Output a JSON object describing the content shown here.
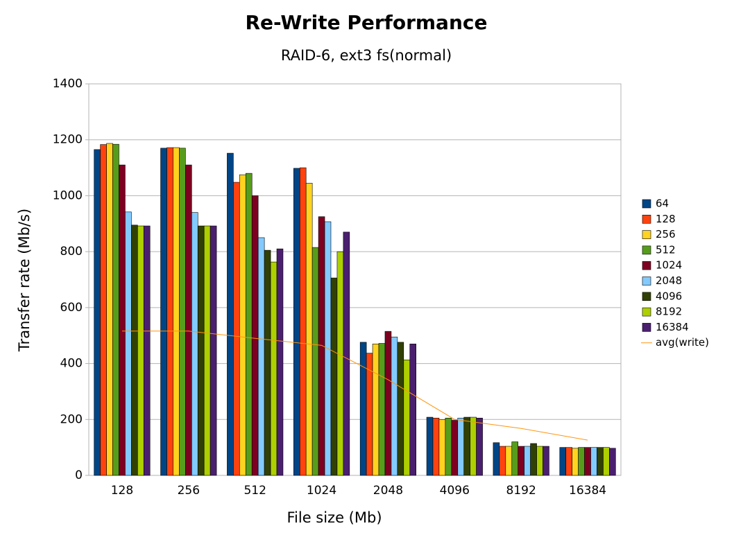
{
  "chart_data": {
    "type": "bar",
    "title": "Re-Write Performance",
    "subtitle": "RAID-6, ext3 fs(normal)",
    "x_label": "File size (Mb)",
    "y_label": "Transfer rate (Mb/s)",
    "categories": [
      "128",
      "256",
      "512",
      "1024",
      "2048",
      "4096",
      "8192",
      "16384"
    ],
    "ylim": [
      0,
      1400
    ],
    "yticks": [
      0,
      200,
      400,
      600,
      800,
      1000,
      1200,
      1400
    ],
    "grid": true,
    "legend": "right",
    "series": [
      {
        "name": "64",
        "color": "#004586",
        "values": [
          1165,
          1170,
          1152,
          1098,
          476,
          208,
          117,
          100
        ]
      },
      {
        "name": "128",
        "color": "#ff420e",
        "values": [
          1183,
          1172,
          1048,
          1100,
          437,
          205,
          104,
          100
        ]
      },
      {
        "name": "256",
        "color": "#ffd320",
        "values": [
          1187,
          1172,
          1075,
          1045,
          470,
          200,
          104,
          97
        ]
      },
      {
        "name": "512",
        "color": "#579d1c",
        "values": [
          1184,
          1170,
          1080,
          815,
          472,
          205,
          120,
          100
        ]
      },
      {
        "name": "1024",
        "color": "#7e0021",
        "values": [
          1110,
          1110,
          1000,
          925,
          515,
          197,
          104,
          100
        ]
      },
      {
        "name": "2048",
        "color": "#83caff",
        "values": [
          942,
          940,
          850,
          907,
          495,
          205,
          104,
          100
        ]
      },
      {
        "name": "4096",
        "color": "#314004",
        "values": [
          895,
          892,
          805,
          706,
          476,
          208,
          114,
          100
        ]
      },
      {
        "name": "8192",
        "color": "#aecf00",
        "values": [
          892,
          892,
          763,
          800,
          413,
          208,
          104,
          100
        ]
      },
      {
        "name": "16384",
        "color": "#4b1f6f",
        "values": [
          892,
          892,
          810,
          870,
          470,
          205,
          104,
          97
        ]
      },
      {
        "name": "avg(write)",
        "type": "line",
        "color": "#ff950e",
        "values": [
          516,
          516,
          490,
          465,
          342,
          200,
          168,
          126
        ]
      }
    ]
  }
}
